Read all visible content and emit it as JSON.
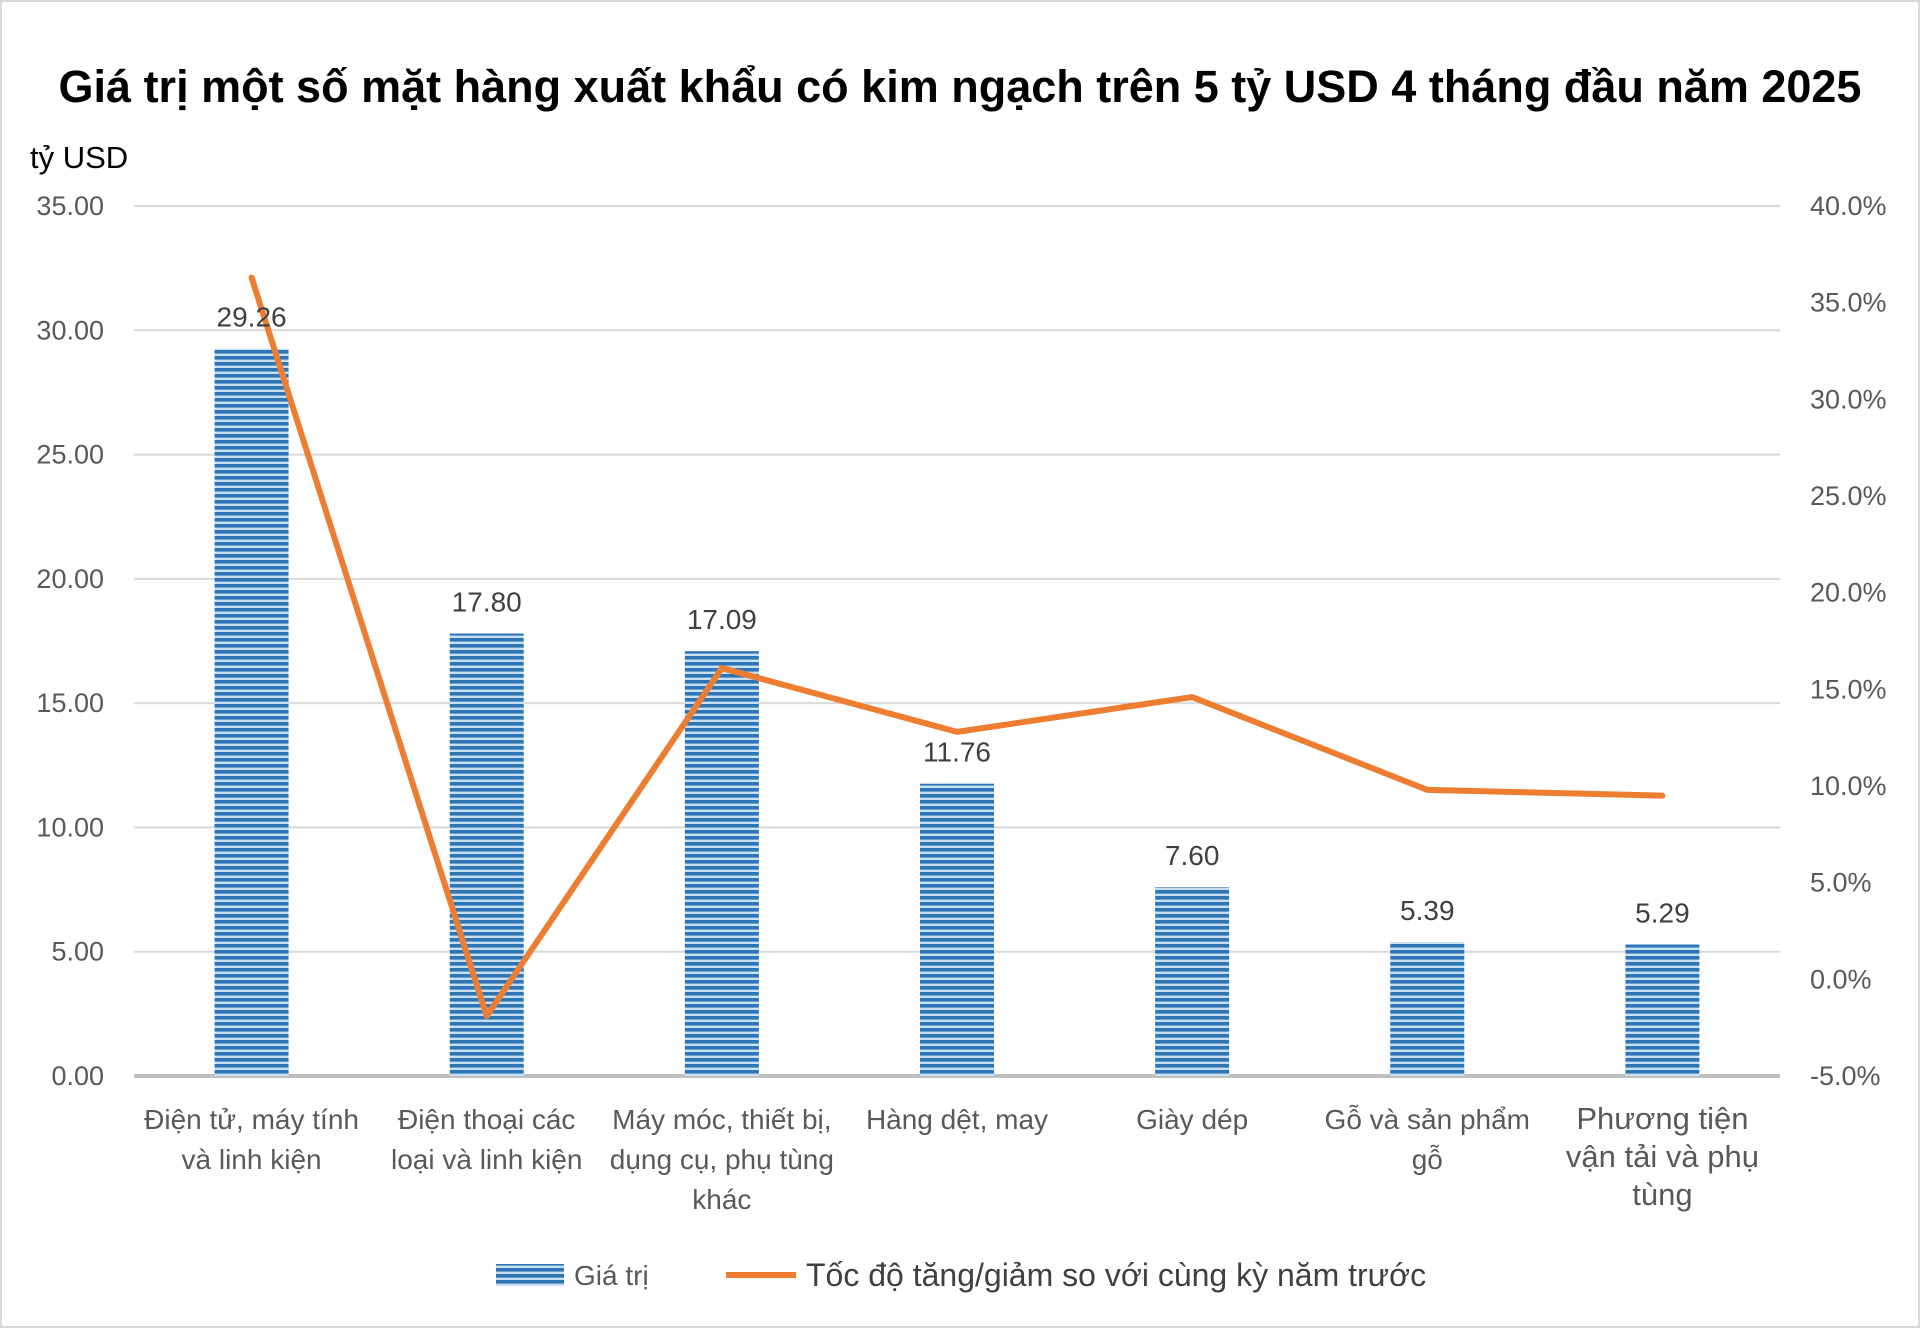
{
  "chart_data": {
    "type": "bar",
    "title": "Giá trị một số mặt hàng xuất khẩu có kim ngạch trên 5 tỷ USD 4 tháng đầu năm 2025",
    "ylabel": "tỷ USD",
    "categories": [
      [
        "Điện tử, máy tính",
        "và linh kiện"
      ],
      [
        "Điện thoại các",
        "loại và linh kiện"
      ],
      [
        "Máy móc, thiết bị,",
        "dụng cụ, phụ tùng",
        "khác"
      ],
      [
        "Hàng dệt, may"
      ],
      [
        "Giày dép"
      ],
      [
        "Gỗ và sản phẩm",
        "gỗ"
      ],
      [
        "Phương tiện",
        "vận tải và phụ",
        "tùng"
      ]
    ],
    "ylim": [
      0,
      35
    ],
    "y2lim": [
      -5,
      40
    ],
    "y_ticks": [
      "0.00",
      "5.00",
      "10.00",
      "15.00",
      "20.00",
      "25.00",
      "30.00",
      "35.00"
    ],
    "y2_ticks": [
      "-5.0%",
      "0.0%",
      "5.0%",
      "10.0%",
      "15.0%",
      "20.0%",
      "25.0%",
      "30.0%",
      "35.0%",
      "40.0%"
    ],
    "series": [
      {
        "name": "Giá trị",
        "type": "bar",
        "axis": "left",
        "values": [
          29.26,
          17.8,
          17.09,
          11.76,
          7.6,
          5.39,
          5.29
        ],
        "labels": [
          "29.26",
          "17.80",
          "17.09",
          "11.76",
          "7.60",
          "5.39",
          "5.29"
        ],
        "color": "#2e75b6"
      },
      {
        "name": "Tốc độ tăng/giảm so với cùng kỳ năm trước",
        "type": "line",
        "axis": "right",
        "values": [
          36.3,
          -1.9,
          16.1,
          12.8,
          14.6,
          9.8,
          9.5
        ],
        "color": "#ed7d31"
      }
    ],
    "grid": true,
    "legend_position": "bottom"
  }
}
